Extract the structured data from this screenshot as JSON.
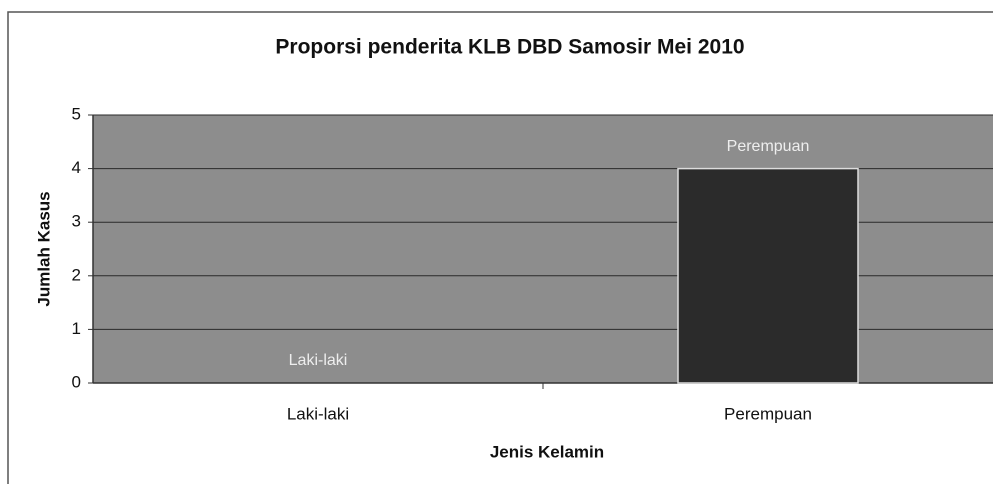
{
  "chart_data": {
    "type": "bar",
    "title": "Proporsi penderita KLB DBD Samosir Mei 2010",
    "categories": [
      "Laki-laki",
      "Perempuan"
    ],
    "values": [
      0,
      4
    ],
    "color": "#2b2b2b",
    "xlabel": "Jenis Kelamin",
    "ylabel": "Jumlah Kasus",
    "ylim": [
      0,
      5
    ],
    "yticks": [
      0,
      1,
      2,
      3,
      4,
      5
    ],
    "grid": true
  }
}
